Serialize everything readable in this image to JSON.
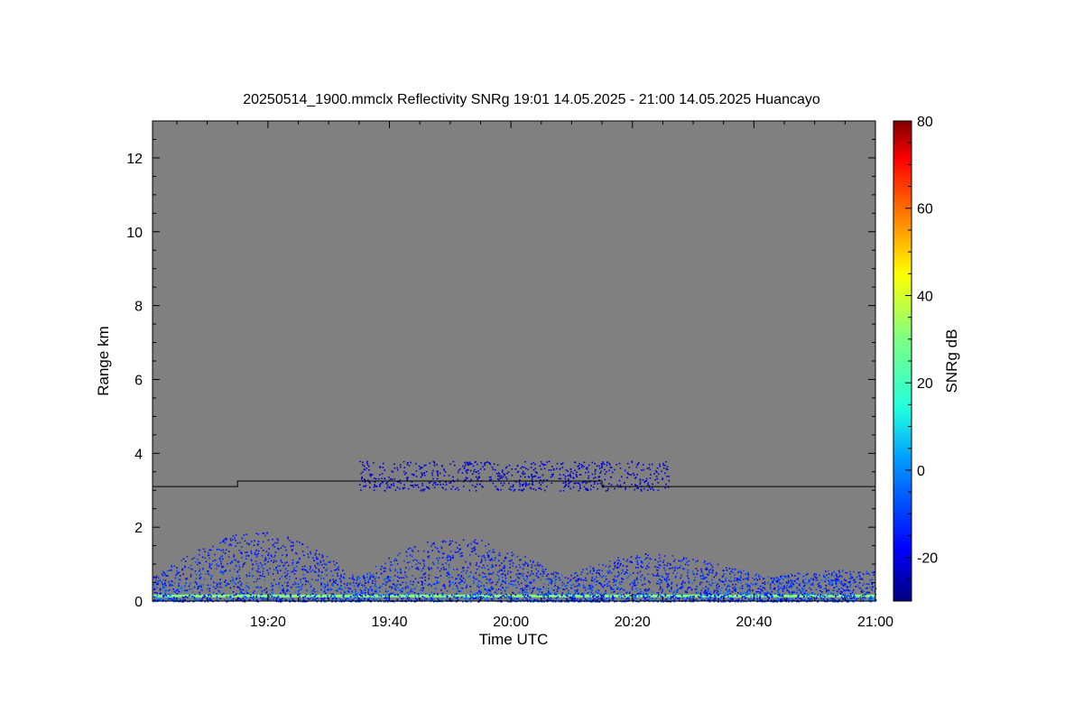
{
  "chart_data": {
    "type": "heatmap",
    "title": "20250514_1900.mmclx Reflectivity SNRg   19:01 14.05.2025 - 21:00 14.05.2025 Huancayo",
    "xlabel": "Time UTC",
    "ylabel": "Range km",
    "xlim": [
      "19:01",
      "21:00"
    ],
    "ylim": [
      0,
      13
    ],
    "x_ticks": [
      "19:20",
      "19:40",
      "20:00",
      "20:20",
      "20:40",
      "21:00"
    ],
    "y_ticks": [
      "0",
      "2",
      "4",
      "6",
      "8",
      "10",
      "12"
    ],
    "background_color": "#808080",
    "colorbar": {
      "label": "SNRg dB",
      "range": [
        -30,
        80
      ],
      "ticks": [
        "-20",
        "0",
        "20",
        "40",
        "60",
        "80"
      ],
      "colormap": "jet"
    },
    "boundary_line": [
      {
        "time": "19:01",
        "range_km": 3.1
      },
      {
        "time": "19:15",
        "range_km": 3.1
      },
      {
        "time": "19:15",
        "range_km": 3.25
      },
      {
        "time": "20:15",
        "range_km": 3.25
      },
      {
        "time": "20:15",
        "range_km": 3.1
      },
      {
        "time": "21:00",
        "range_km": 3.1
      }
    ],
    "echo_layers": [
      {
        "start": "19:35",
        "end": "20:26",
        "base_km": 3.0,
        "top_km": 3.8,
        "snr_db": -22
      },
      {
        "start": "19:01",
        "end": "21:00",
        "base_km": 0.0,
        "top_km": 1.9,
        "snr_db": -15
      }
    ],
    "surface_layer": {
      "range_km": 0.15,
      "snr_db": 25
    }
  }
}
